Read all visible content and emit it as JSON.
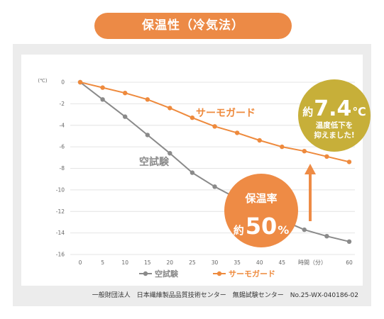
{
  "footer": "一般財団法人　日本繊維製品品質技術センター　無錫試験センター　No.25-WX-040186-02",
  "colors": {
    "accent": "#ee8b45",
    "gold": "#c7af39"
  },
  "chart_data": {
    "type": "line",
    "title": "保温性（冷気法）",
    "xlabel": "時間（分）",
    "ylabel": "(℃)",
    "xlim": [
      0,
      60
    ],
    "ylim": [
      -16,
      0
    ],
    "x_ticks": [
      0,
      5,
      10,
      15,
      20,
      25,
      30,
      35,
      40,
      45,
      60
    ],
    "y_ticks": [
      0,
      -2,
      -4,
      -6,
      -8,
      -10,
      -12,
      -14,
      -16
    ],
    "grid": true,
    "legend": "bottom",
    "x": [
      0,
      5,
      10,
      15,
      20,
      25,
      30,
      35,
      40,
      45,
      50,
      55,
      60
    ],
    "series": [
      {
        "name": "空試験",
        "color": "#8a8a8a",
        "values": [
          0,
          -1.6,
          -3.2,
          -4.9,
          -6.6,
          -8.4,
          -9.7,
          -10.8,
          -11.8,
          -12.8,
          -13.7,
          -14.3,
          -14.8
        ]
      },
      {
        "name": "サーモガード",
        "color": "#ee8a3d",
        "values": [
          0,
          -0.5,
          -1.0,
          -1.6,
          -2.4,
          -3.3,
          -4.1,
          -4.7,
          -5.4,
          -6.0,
          -6.4,
          -6.9,
          -7.4
        ]
      }
    ],
    "annotations": {
      "retention": {
        "label": "保温率",
        "prefix": "約",
        "value": "50",
        "unit": "%"
      },
      "reduction": {
        "prefix": "約",
        "value": "7.4",
        "unit": "℃",
        "lines": [
          "温度低下を",
          "抑えました!"
        ]
      }
    }
  }
}
